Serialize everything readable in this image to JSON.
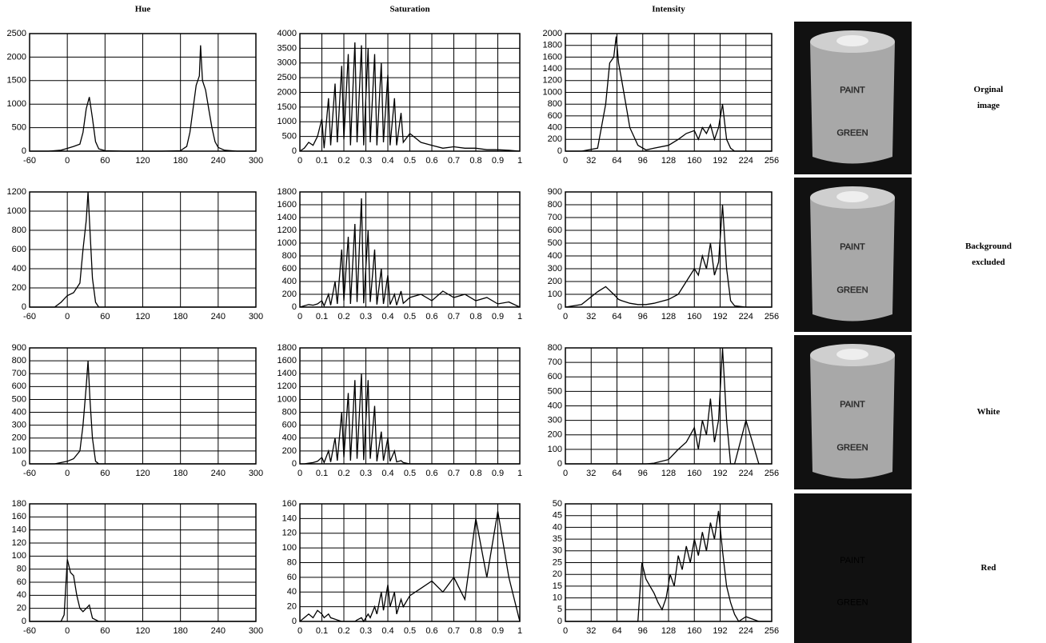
{
  "chart_data": [
    {
      "type": "line",
      "title": "Hue",
      "x": [
        -60,
        -30,
        -10,
        0,
        10,
        20,
        25,
        30,
        35,
        40,
        45,
        50,
        60,
        90,
        150,
        180,
        190,
        195,
        200,
        205,
        210,
        212,
        215,
        220,
        225,
        230,
        235,
        240,
        250,
        270,
        300
      ],
      "values": [
        0,
        0,
        20,
        60,
        100,
        150,
        400,
        900,
        1150,
        700,
        200,
        50,
        10,
        0,
        0,
        10,
        100,
        400,
        900,
        1400,
        1600,
        2250,
        1500,
        1300,
        900,
        500,
        200,
        80,
        20,
        0,
        0
      ],
      "color": "#000000",
      "xlim": [
        -60,
        300
      ],
      "ylim": [
        0,
        2500
      ],
      "xticks": [
        -60,
        0,
        60,
        120,
        180,
        240,
        300
      ],
      "yticks": [
        0,
        500,
        1000,
        1500,
        2000,
        2500
      ],
      "grid": true
    },
    {
      "type": "line",
      "title": "Saturation",
      "x": [
        0,
        0.02,
        0.04,
        0.06,
        0.08,
        0.1,
        0.11,
        0.13,
        0.14,
        0.16,
        0.17,
        0.19,
        0.2,
        0.22,
        0.23,
        0.25,
        0.26,
        0.28,
        0.29,
        0.31,
        0.32,
        0.34,
        0.35,
        0.37,
        0.38,
        0.4,
        0.41,
        0.43,
        0.44,
        0.46,
        0.47,
        0.5,
        0.55,
        0.6,
        0.65,
        0.7,
        0.75,
        0.8,
        0.85,
        0.9,
        0.95,
        1
      ],
      "values": [
        0,
        100,
        300,
        200,
        500,
        1100,
        100,
        1800,
        200,
        2300,
        300,
        2900,
        400,
        3300,
        200,
        3700,
        300,
        3600,
        200,
        3500,
        300,
        3300,
        200,
        3000,
        300,
        2600,
        200,
        1800,
        200,
        1300,
        300,
        600,
        300,
        200,
        100,
        150,
        100,
        100,
        50,
        50,
        30,
        0
      ],
      "color": "#000000",
      "xlim": [
        0,
        1
      ],
      "ylim": [
        0,
        4000
      ],
      "xticks": [
        0,
        0.1,
        0.2,
        0.3,
        0.4,
        0.5,
        0.6,
        0.7,
        0.8,
        0.9,
        1
      ],
      "yticks": [
        0,
        500,
        1000,
        1500,
        2000,
        2500,
        3000,
        3500,
        4000
      ],
      "grid": true
    },
    {
      "type": "line",
      "title": "Intensity",
      "x": [
        0,
        20,
        40,
        50,
        55,
        60,
        63,
        66,
        70,
        75,
        80,
        90,
        100,
        110,
        128,
        140,
        150,
        160,
        165,
        170,
        175,
        180,
        185,
        190,
        195,
        200,
        205,
        210,
        224,
        240,
        256
      ],
      "values": [
        0,
        0,
        50,
        800,
        1500,
        1600,
        1950,
        1500,
        1200,
        800,
        400,
        100,
        20,
        50,
        100,
        200,
        300,
        350,
        200,
        400,
        300,
        450,
        200,
        400,
        800,
        200,
        50,
        0,
        0,
        0,
        0
      ],
      "color": "#000000",
      "xlim": [
        0,
        256
      ],
      "ylim": [
        0,
        2000
      ],
      "xticks": [
        0,
        32,
        64,
        96,
        128,
        160,
        192,
        224,
        256
      ],
      "yticks": [
        0,
        200,
        400,
        600,
        800,
        1000,
        1200,
        1400,
        1600,
        1800,
        2000
      ],
      "grid": true
    },
    {
      "type": "line",
      "x": [
        -60,
        -20,
        -10,
        0,
        10,
        20,
        25,
        30,
        33,
        36,
        40,
        45,
        50,
        60,
        300
      ],
      "values": [
        0,
        0,
        50,
        120,
        150,
        250,
        600,
        900,
        1200,
        800,
        300,
        50,
        0,
        0,
        0
      ],
      "color": "#000000",
      "xlim": [
        -60,
        300
      ],
      "ylim": [
        0,
        1200
      ],
      "xticks": [
        -60,
        0,
        60,
        120,
        180,
        240,
        300
      ],
      "yticks": [
        0,
        200,
        400,
        600,
        800,
        1000,
        1200
      ],
      "grid": true
    },
    {
      "type": "line",
      "x": [
        0,
        0.02,
        0.04,
        0.06,
        0.08,
        0.1,
        0.11,
        0.13,
        0.14,
        0.16,
        0.17,
        0.19,
        0.2,
        0.22,
        0.23,
        0.25,
        0.26,
        0.28,
        0.29,
        0.31,
        0.32,
        0.34,
        0.35,
        0.37,
        0.38,
        0.4,
        0.41,
        0.43,
        0.44,
        0.46,
        0.47,
        0.5,
        0.55,
        0.6,
        0.65,
        0.7,
        0.75,
        0.8,
        0.85,
        0.9,
        0.95,
        1
      ],
      "values": [
        0,
        20,
        40,
        30,
        50,
        100,
        20,
        200,
        30,
        400,
        50,
        900,
        100,
        1100,
        50,
        1300,
        80,
        1700,
        60,
        1200,
        80,
        900,
        40,
        600,
        50,
        500,
        40,
        200,
        30,
        250,
        60,
        150,
        200,
        100,
        250,
        150,
        200,
        100,
        150,
        50,
        80,
        0
      ],
      "color": "#000000",
      "xlim": [
        0,
        1
      ],
      "ylim": [
        0,
        1800
      ],
      "xticks": [
        0,
        0.1,
        0.2,
        0.3,
        0.4,
        0.5,
        0.6,
        0.7,
        0.8,
        0.9,
        1
      ],
      "yticks": [
        0,
        200,
        400,
        600,
        800,
        1000,
        1200,
        1400,
        1600,
        1800
      ],
      "grid": true
    },
    {
      "type": "line",
      "x": [
        0,
        20,
        40,
        50,
        55,
        60,
        63,
        66,
        70,
        75,
        80,
        90,
        100,
        110,
        128,
        140,
        150,
        160,
        165,
        170,
        175,
        180,
        185,
        190,
        195,
        200,
        205,
        210,
        224,
        240,
        256
      ],
      "values": [
        0,
        20,
        120,
        160,
        130,
        100,
        80,
        60,
        50,
        40,
        30,
        20,
        20,
        30,
        60,
        100,
        200,
        300,
        250,
        400,
        300,
        500,
        250,
        350,
        800,
        300,
        50,
        10,
        0,
        0,
        0
      ],
      "color": "#000000",
      "xlim": [
        0,
        256
      ],
      "ylim": [
        0,
        900
      ],
      "xticks": [
        0,
        32,
        64,
        96,
        128,
        160,
        192,
        224,
        256
      ],
      "yticks": [
        0,
        100,
        200,
        300,
        400,
        500,
        600,
        700,
        800,
        900
      ],
      "grid": true
    },
    {
      "type": "line",
      "x": [
        -60,
        -20,
        -10,
        0,
        10,
        20,
        25,
        30,
        33,
        36,
        40,
        45,
        50,
        60,
        300
      ],
      "values": [
        0,
        0,
        10,
        20,
        40,
        100,
        300,
        600,
        800,
        500,
        200,
        20,
        0,
        0,
        0
      ],
      "color": "#000000",
      "xlim": [
        -60,
        300
      ],
      "ylim": [
        0,
        900
      ],
      "xticks": [
        -60,
        0,
        60,
        120,
        180,
        240,
        300
      ],
      "yticks": [
        0,
        100,
        200,
        300,
        400,
        500,
        600,
        700,
        800,
        900
      ],
      "grid": true
    },
    {
      "type": "line",
      "x": [
        0,
        0.02,
        0.04,
        0.06,
        0.08,
        0.1,
        0.11,
        0.13,
        0.14,
        0.16,
        0.17,
        0.19,
        0.2,
        0.22,
        0.23,
        0.25,
        0.26,
        0.28,
        0.29,
        0.31,
        0.32,
        0.34,
        0.35,
        0.37,
        0.38,
        0.4,
        0.41,
        0.43,
        0.44,
        0.46,
        0.47,
        0.5,
        0.55,
        0.6,
        0.65,
        0.7,
        0.75,
        0.8,
        0.85,
        0.9,
        0.95,
        1
      ],
      "values": [
        0,
        0,
        10,
        20,
        40,
        100,
        20,
        200,
        30,
        400,
        50,
        800,
        100,
        1100,
        50,
        1300,
        80,
        1400,
        60,
        1300,
        80,
        900,
        40,
        500,
        50,
        400,
        40,
        200,
        30,
        50,
        20,
        0,
        0,
        0,
        0,
        0,
        0,
        0,
        0,
        0,
        0,
        0
      ],
      "color": "#000000",
      "xlim": [
        0,
        1
      ],
      "ylim": [
        0,
        1800
      ],
      "xticks": [
        0,
        0.1,
        0.2,
        0.3,
        0.4,
        0.5,
        0.6,
        0.7,
        0.8,
        0.9,
        1
      ],
      "yticks": [
        0,
        200,
        400,
        600,
        800,
        1000,
        1200,
        1400,
        1600,
        1800
      ],
      "grid": true
    },
    {
      "type": "line",
      "x": [
        0,
        20,
        40,
        50,
        55,
        60,
        63,
        66,
        70,
        75,
        80,
        90,
        100,
        110,
        128,
        140,
        150,
        160,
        165,
        170,
        175,
        180,
        185,
        190,
        195,
        200,
        205,
        210,
        224,
        240,
        256
      ],
      "values": [
        0,
        0,
        0,
        0,
        0,
        0,
        0,
        0,
        0,
        0,
        0,
        0,
        0,
        5,
        30,
        100,
        150,
        250,
        100,
        300,
        200,
        450,
        150,
        300,
        800,
        300,
        0,
        0,
        300,
        0,
        0
      ],
      "color": "#000000",
      "xlim": [
        0,
        256
      ],
      "ylim": [
        0,
        800
      ],
      "xticks": [
        0,
        32,
        64,
        96,
        128,
        160,
        192,
        224,
        256
      ],
      "yticks": [
        0,
        100,
        200,
        300,
        400,
        500,
        600,
        700,
        800
      ],
      "grid": true
    },
    {
      "type": "line",
      "x": [
        -60,
        -10,
        -5,
        0,
        5,
        10,
        15,
        20,
        25,
        30,
        35,
        40,
        50,
        300
      ],
      "values": [
        0,
        0,
        10,
        95,
        75,
        70,
        40,
        20,
        15,
        20,
        25,
        5,
        0,
        0
      ],
      "color": "#000000",
      "xlim": [
        -60,
        300
      ],
      "ylim": [
        0,
        180
      ],
      "xticks": [
        -60,
        0,
        60,
        120,
        180,
        240,
        300
      ],
      "yticks": [
        0,
        20,
        40,
        60,
        80,
        100,
        120,
        140,
        160,
        180
      ],
      "grid": true
    },
    {
      "type": "line",
      "x": [
        0,
        0.02,
        0.04,
        0.06,
        0.08,
        0.1,
        0.11,
        0.13,
        0.14,
        0.16,
        0.17,
        0.19,
        0.2,
        0.22,
        0.23,
        0.25,
        0.26,
        0.28,
        0.29,
        0.31,
        0.32,
        0.34,
        0.35,
        0.37,
        0.38,
        0.4,
        0.41,
        0.43,
        0.44,
        0.46,
        0.47,
        0.5,
        0.55,
        0.6,
        0.65,
        0.7,
        0.75,
        0.8,
        0.85,
        0.9,
        0.95,
        1
      ],
      "values": [
        0,
        5,
        10,
        5,
        15,
        10,
        5,
        10,
        5,
        3,
        2,
        0,
        0,
        0,
        0,
        0,
        2,
        5,
        0,
        10,
        5,
        20,
        10,
        40,
        15,
        50,
        20,
        40,
        10,
        30,
        20,
        35,
        45,
        55,
        40,
        60,
        30,
        140,
        60,
        150,
        60,
        0
      ],
      "color": "#000000",
      "xlim": [
        0,
        1
      ],
      "ylim": [
        0,
        160
      ],
      "xticks": [
        0,
        0.1,
        0.2,
        0.3,
        0.4,
        0.5,
        0.6,
        0.7,
        0.8,
        0.9,
        1
      ],
      "yticks": [
        0,
        20,
        40,
        60,
        80,
        100,
        120,
        140,
        160
      ],
      "grid": true
    },
    {
      "type": "line",
      "x": [
        0,
        80,
        90,
        95,
        100,
        105,
        110,
        115,
        120,
        125,
        130,
        135,
        140,
        145,
        150,
        155,
        160,
        165,
        170,
        175,
        180,
        185,
        190,
        195,
        200,
        205,
        210,
        215,
        224,
        240,
        256
      ],
      "values": [
        0,
        0,
        0,
        25,
        18,
        15,
        12,
        8,
        5,
        10,
        20,
        15,
        28,
        22,
        32,
        25,
        35,
        28,
        38,
        30,
        42,
        35,
        47,
        30,
        15,
        8,
        3,
        0,
        2,
        0,
        0
      ],
      "color": "#000000",
      "xlim": [
        0,
        256
      ],
      "ylim": [
        0,
        50
      ],
      "xticks": [
        0,
        32,
        64,
        96,
        128,
        160,
        192,
        224,
        256
      ],
      "yticks": [
        0,
        5,
        10,
        15,
        20,
        25,
        30,
        35,
        40,
        45,
        50
      ],
      "grid": true
    }
  ],
  "photos": [
    {
      "lines": [
        "PAINT",
        "GREEN"
      ]
    },
    {
      "lines": [
        "PAINT",
        "GREEN"
      ]
    },
    {
      "lines": [
        "PAINT",
        "GREEN"
      ]
    },
    {
      "lines": [
        "PAINT",
        "GREEN"
      ]
    }
  ],
  "row_labels": [
    [
      "Orginal",
      "image"
    ],
    [
      "Background",
      "excluded"
    ],
    [
      "White"
    ],
    [
      "Red"
    ]
  ]
}
